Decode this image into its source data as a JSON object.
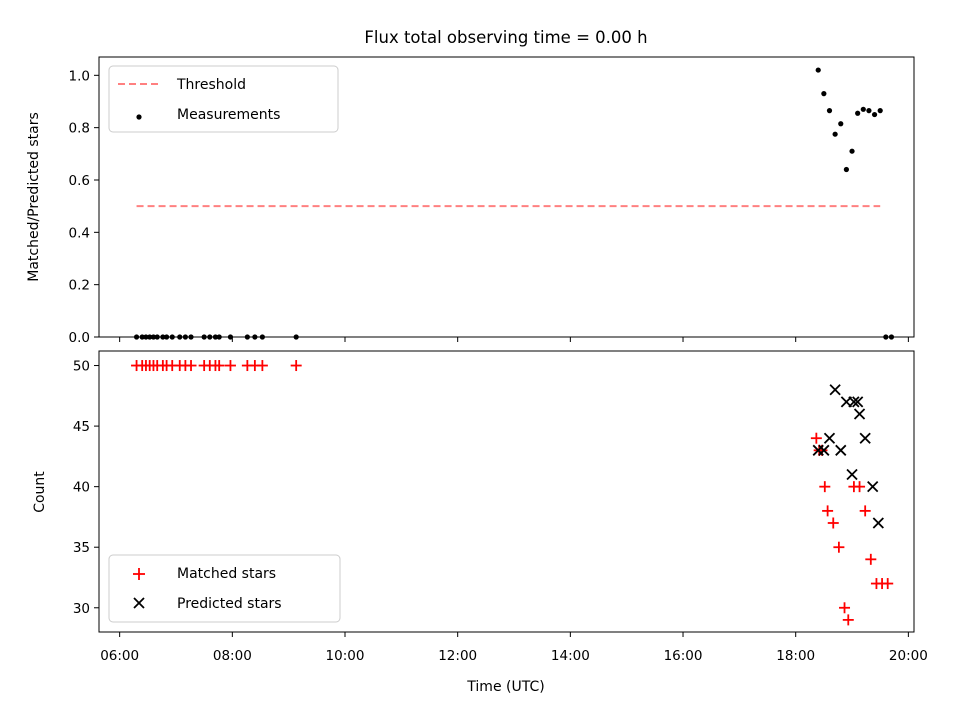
{
  "chart_data": [
    {
      "type": "scatter",
      "title": "Flux total observing time = 0.00 h",
      "xlabel": "",
      "ylabel": "Matched/Predicted stars",
      "xlim": [
        "05:38",
        "20:06"
      ],
      "ylim": [
        0,
        1.07
      ],
      "yticks": [
        "0.0",
        "0.2",
        "0.4",
        "0.6",
        "0.8",
        "1.0"
      ],
      "xticks": [
        "06:00",
        "08:00",
        "10:00",
        "12:00",
        "14:00",
        "16:00",
        "18:00",
        "20:00"
      ],
      "legend_position": "top-left",
      "series": [
        {
          "name": "Threshold",
          "kind": "dashed-line",
          "color": "#ff8080",
          "points": [
            [
              "06:18",
              0.5
            ],
            [
              "19:30",
              0.5
            ]
          ]
        },
        {
          "name": "Measurements",
          "kind": "dot",
          "color": "#000000",
          "points": [
            [
              "06:18",
              0.0
            ],
            [
              "06:24",
              0.0
            ],
            [
              "06:28",
              0.0
            ],
            [
              "06:32",
              0.0
            ],
            [
              "06:36",
              0.0
            ],
            [
              "06:40",
              0.0
            ],
            [
              "06:46",
              0.0
            ],
            [
              "06:50",
              0.0
            ],
            [
              "06:56",
              0.0
            ],
            [
              "07:04",
              0.0
            ],
            [
              "07:10",
              0.0
            ],
            [
              "07:16",
              0.0
            ],
            [
              "07:30",
              0.0
            ],
            [
              "07:36",
              0.0
            ],
            [
              "07:42",
              0.0
            ],
            [
              "07:46",
              0.0
            ],
            [
              "07:58",
              0.0
            ],
            [
              "08:16",
              0.0
            ],
            [
              "08:24",
              0.0
            ],
            [
              "08:32",
              0.0
            ],
            [
              "09:08",
              0.0
            ],
            [
              "18:24",
              1.02
            ],
            [
              "18:30",
              0.93
            ],
            [
              "18:36",
              0.865
            ],
            [
              "18:42",
              0.775
            ],
            [
              "18:48",
              0.815
            ],
            [
              "18:54",
              0.64
            ],
            [
              "19:00",
              0.71
            ],
            [
              "19:06",
              0.855
            ],
            [
              "19:12",
              0.87
            ],
            [
              "19:18",
              0.865
            ],
            [
              "19:24",
              0.85
            ],
            [
              "19:30",
              0.865
            ],
            [
              "19:36",
              0.0
            ],
            [
              "19:42",
              0.0
            ]
          ]
        }
      ]
    },
    {
      "type": "scatter",
      "title": "",
      "xlabel": "Time (UTC)",
      "ylabel": "Count",
      "xlim": [
        "05:38",
        "20:06"
      ],
      "ylim": [
        28,
        51.2
      ],
      "yticks": [
        "30",
        "35",
        "40",
        "45",
        "50"
      ],
      "xticks": [
        "06:00",
        "08:00",
        "10:00",
        "12:00",
        "14:00",
        "16:00",
        "18:00",
        "20:00"
      ],
      "legend_position": "bottom-left",
      "series": [
        {
          "name": "Matched stars",
          "kind": "plus",
          "color": "#ff0000",
          "points": [
            [
              "06:18",
              50
            ],
            [
              "06:24",
              50
            ],
            [
              "06:28",
              50
            ],
            [
              "06:32",
              50
            ],
            [
              "06:36",
              50
            ],
            [
              "06:40",
              50
            ],
            [
              "06:46",
              50
            ],
            [
              "06:50",
              50
            ],
            [
              "06:56",
              50
            ],
            [
              "07:04",
              50
            ],
            [
              "07:10",
              50
            ],
            [
              "07:16",
              50
            ],
            [
              "07:30",
              50
            ],
            [
              "07:36",
              50
            ],
            [
              "07:42",
              50
            ],
            [
              "07:46",
              50
            ],
            [
              "07:58",
              50
            ],
            [
              "08:16",
              50
            ],
            [
              "08:24",
              50
            ],
            [
              "08:32",
              50
            ],
            [
              "09:08",
              50
            ],
            [
              "18:22",
              44
            ],
            [
              "18:25",
              43
            ],
            [
              "18:28",
              43
            ],
            [
              "18:31",
              40
            ],
            [
              "18:34",
              38
            ],
            [
              "18:40",
              37
            ],
            [
              "18:46",
              35
            ],
            [
              "18:52",
              30
            ],
            [
              "18:56",
              29
            ],
            [
              "19:02",
              40
            ],
            [
              "19:08",
              40
            ],
            [
              "19:14",
              38
            ],
            [
              "19:20",
              34
            ],
            [
              "19:26",
              32
            ],
            [
              "19:32",
              32
            ],
            [
              "19:38",
              32
            ]
          ]
        },
        {
          "name": "Predicted stars",
          "kind": "cross",
          "color": "#000000",
          "points": [
            [
              "18:24",
              43
            ],
            [
              "18:30",
              43
            ],
            [
              "18:36",
              44
            ],
            [
              "18:42",
              48
            ],
            [
              "18:48",
              43
            ],
            [
              "18:54",
              47
            ],
            [
              "19:00",
              41
            ],
            [
              "19:02",
              47
            ],
            [
              "19:06",
              47
            ],
            [
              "19:08",
              46
            ],
            [
              "19:14",
              44
            ],
            [
              "19:22",
              40
            ],
            [
              "19:28",
              37
            ]
          ]
        }
      ]
    }
  ]
}
